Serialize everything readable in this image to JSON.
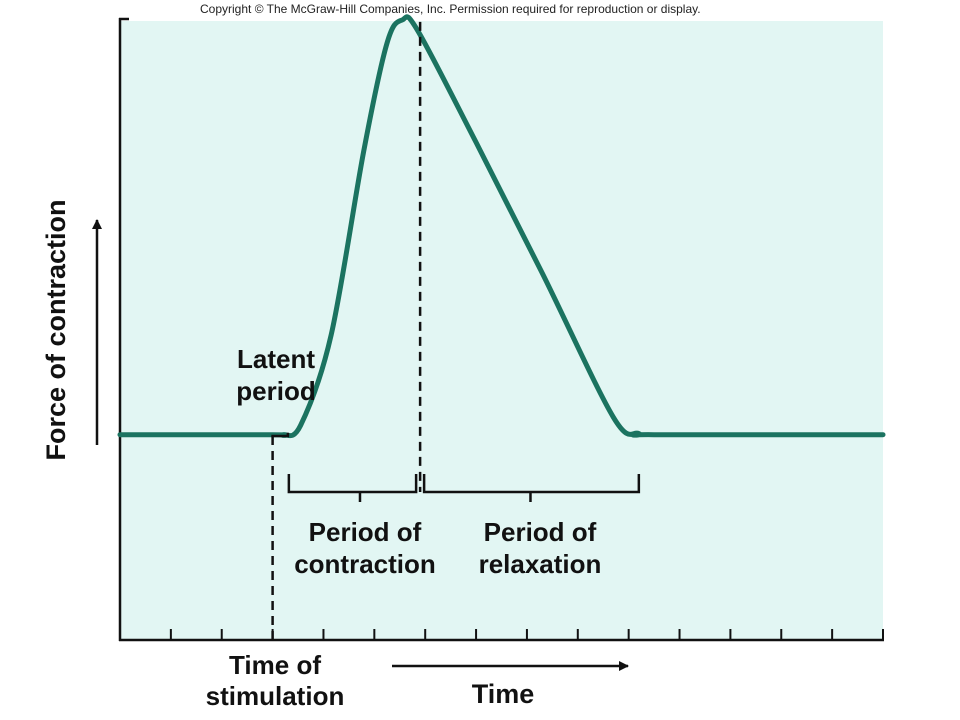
{
  "copyright": "Copyright © The McGraw-Hill Companies, Inc. Permission required for reproduction or display.",
  "colors": {
    "panel": "#e2f6f3",
    "curve": "#1b7360",
    "ink": "#111111"
  },
  "chart_data": {
    "type": "line",
    "xlabel": "Time",
    "ylabel": "Force of contraction",
    "xlim": [
      0,
      15
    ],
    "ylim": [
      0,
      10
    ],
    "tick_count": 15,
    "grid": false,
    "series": [
      {
        "x": [
          0,
          3,
          3.2,
          3.55,
          4.15,
          4.8,
          5.25,
          5.55,
          5.85,
          7.0,
          8.3,
          9.7,
          10.2,
          10.5,
          15
        ],
        "values": [
          3.3,
          3.3,
          3.3,
          3.45,
          4.9,
          7.9,
          9.6,
          9.97,
          9.8,
          8.0,
          5.9,
          3.58,
          3.32,
          3.3,
          3.3
        ]
      }
    ],
    "annotations": {
      "time_of_stimulation": "Time of\nstimulation",
      "latent_period": "Latent\nperiod",
      "period_of_contraction": "Period of\ncontraction",
      "period_of_relaxation": "Period of\nrelaxation"
    },
    "stimulation_x": 3.0,
    "latent_end_x": 3.3,
    "peak_x": 5.9,
    "relaxation_end_x": 10.2
  }
}
